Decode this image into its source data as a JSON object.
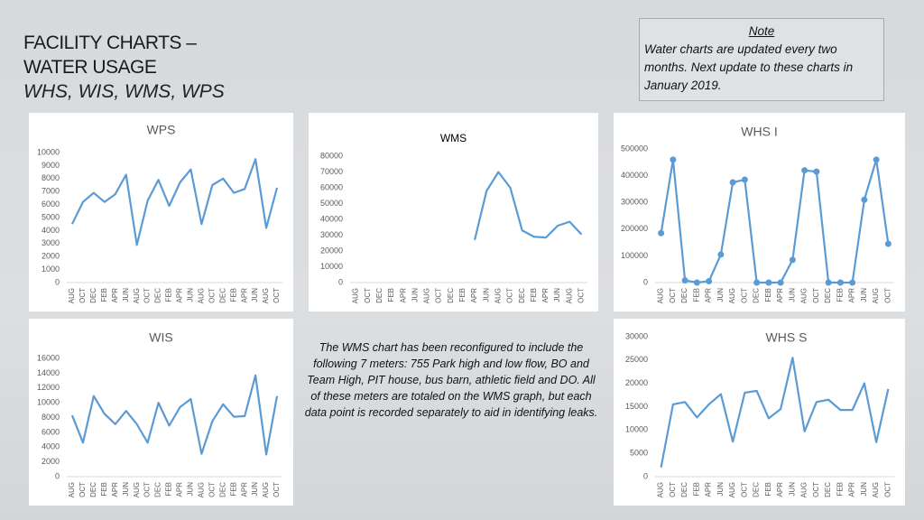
{
  "header": {
    "title_line1": "FACILITY CHARTS –",
    "title_line2": "WATER USAGE",
    "subtitle": "WHS, WIS, WMS, WPS"
  },
  "note": {
    "heading": "Note",
    "text": "Water charts are updated every two months. Next update to these charts in January 2019."
  },
  "description": "The WMS chart has been reconfigured to include the following 7 meters: 755 Park high and low flow, BO and Team High, PIT house, bus barn, athletic field and DO. All of these meters are totaled on the WMS graph, but each data point is recorded separately to aid in identifying leaks.",
  "chart_data": [
    {
      "type": "line",
      "title": "WPS",
      "color": "#5b9bd5",
      "markers": false,
      "categories": [
        "AUG",
        "OCT",
        "DEC",
        "FEB",
        "APR",
        "JUN",
        "AUG",
        "OCT",
        "DEC",
        "FEB",
        "APR",
        "JUN",
        "AUG",
        "OCT",
        "DEC",
        "FEB",
        "APR",
        "JUN",
        "AUG",
        "OCT"
      ],
      "values": [
        4500,
        6200,
        6900,
        6200,
        6800,
        8300,
        2900,
        6300,
        7900,
        5900,
        7700,
        8700,
        4500,
        7500,
        8000,
        6900,
        7200,
        9500,
        4200,
        7300
      ],
      "ylim": [
        0,
        10000
      ],
      "yticks": [
        0,
        1000,
        2000,
        3000,
        4000,
        5000,
        6000,
        7000,
        8000,
        9000,
        10000
      ]
    },
    {
      "type": "line",
      "title": "WMS",
      "color": "#5b9bd5",
      "markers": false,
      "categories": [
        "AUG",
        "OCT",
        "DEC",
        "FEB",
        "APR",
        "JUN",
        "AUG",
        "OCT",
        "DEC",
        "FEB",
        "APR",
        "JUN",
        "AUG",
        "OCT",
        "DEC",
        "FEB",
        "APR",
        "JUN",
        "AUG",
        "OCT"
      ],
      "values": [
        null,
        null,
        null,
        null,
        null,
        null,
        null,
        null,
        null,
        null,
        27000,
        58000,
        70000,
        60000,
        33000,
        29000,
        28500,
        36000,
        38500,
        30500
      ],
      "ylim": [
        0,
        80000
      ],
      "yticks": [
        0,
        10000,
        20000,
        30000,
        40000,
        50000,
        60000,
        70000,
        80000
      ]
    },
    {
      "type": "line",
      "title": "WHS I",
      "color": "#5b9bd5",
      "markers": true,
      "categories": [
        "AUG",
        "OCT",
        "DEC",
        "FEB",
        "APR",
        "JUN",
        "AUG",
        "OCT",
        "DEC",
        "FEB",
        "APR",
        "JUN",
        "AUG",
        "OCT",
        "DEC",
        "FEB",
        "APR",
        "JUN",
        "AUG",
        "OCT"
      ],
      "values": [
        185000,
        460000,
        8000,
        0,
        5000,
        105000,
        375000,
        385000,
        0,
        0,
        0,
        85000,
        420000,
        415000,
        0,
        0,
        0,
        310000,
        460000,
        145000
      ],
      "ylim": [
        0,
        500000
      ],
      "yticks": [
        0,
        100000,
        200000,
        300000,
        400000,
        500000
      ]
    },
    {
      "type": "line",
      "title": "WIS",
      "color": "#5b9bd5",
      "markers": false,
      "categories": [
        "AUG",
        "OCT",
        "DEC",
        "FEB",
        "APR",
        "JUN",
        "AUG",
        "OCT",
        "DEC",
        "FEB",
        "APR",
        "JUN",
        "AUG",
        "OCT",
        "DEC",
        "FEB",
        "APR",
        "JUN",
        "AUG",
        "OCT"
      ],
      "values": [
        8300,
        4600,
        10900,
        8500,
        7100,
        8900,
        7100,
        4600,
        10000,
        6900,
        9400,
        10500,
        3100,
        7500,
        9800,
        8100,
        8200,
        13700,
        3000,
        10900
      ],
      "ylim": [
        0,
        16000
      ],
      "yticks": [
        0,
        2000,
        4000,
        6000,
        8000,
        10000,
        12000,
        14000,
        16000
      ]
    },
    {
      "type": "line",
      "title": "WHS S",
      "color": "#5b9bd5",
      "markers": false,
      "categories": [
        "AUG",
        "OCT",
        "DEC",
        "FEB",
        "APR",
        "JUN",
        "AUG",
        "OCT",
        "DEC",
        "FEB",
        "APR",
        "JUN",
        "AUG",
        "OCT",
        "DEC",
        "FEB",
        "APR",
        "JUN",
        "AUG",
        "OCT"
      ],
      "values": [
        2000,
        15500,
        16000,
        12700,
        15500,
        17700,
        7500,
        18000,
        18400,
        12500,
        14500,
        25500,
        9700,
        16000,
        16500,
        14300,
        14300,
        20000,
        7400,
        18800
      ],
      "ylim": [
        0,
        30000
      ],
      "yticks": [
        0,
        5000,
        10000,
        15000,
        20000,
        25000,
        30000
      ]
    }
  ]
}
